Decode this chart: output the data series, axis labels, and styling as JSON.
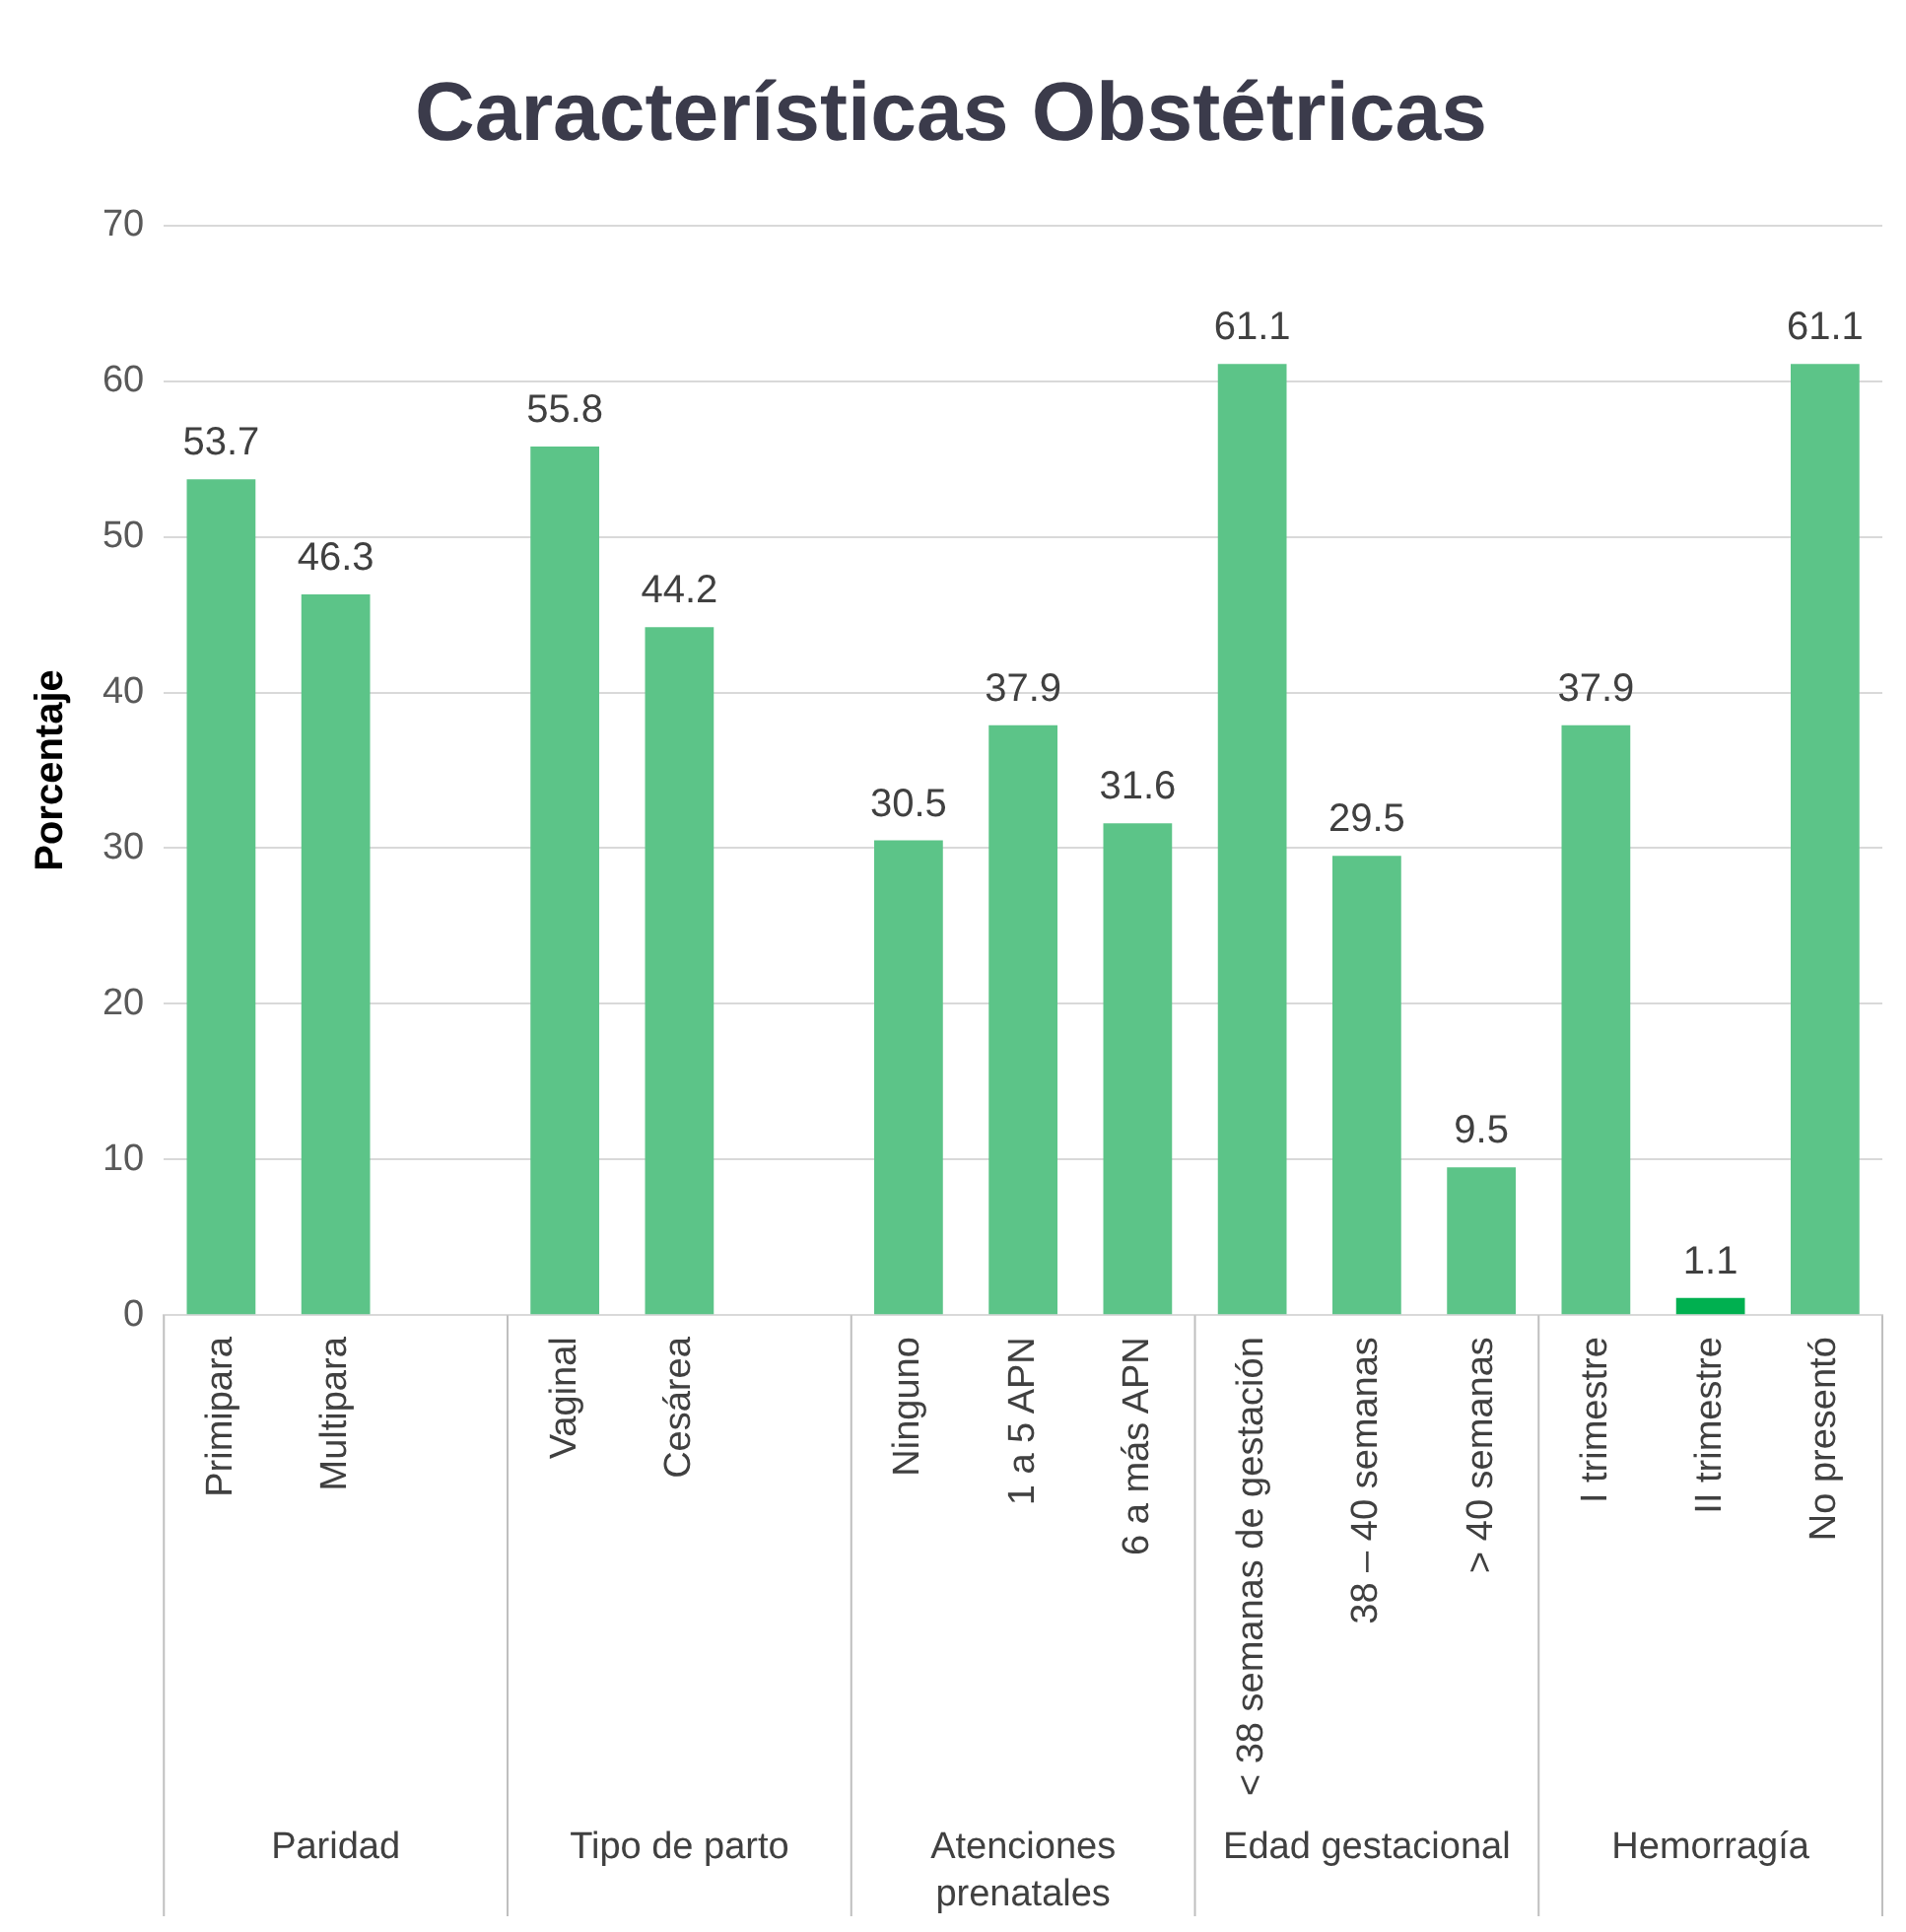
{
  "chart_data": {
    "type": "bar",
    "title": "Características Obstétricas",
    "ylabel": "Porcentaje",
    "categories": [
      "Primipara",
      "Multipara",
      null,
      "Vaginal",
      "Cesárea",
      null,
      "Ninguno",
      "1 a 5 APN",
      "6 a más APN",
      "< 38 semanas de gestación",
      "38 – 40 semanas",
      "> 40 semanas",
      "I trimestre",
      "II trimestre",
      "No presentó"
    ],
    "values": [
      53.7,
      46.3,
      null,
      55.8,
      44.2,
      null,
      30.5,
      37.9,
      31.6,
      61.1,
      29.5,
      9.5,
      37.9,
      1.1,
      61.1
    ],
    "colors": [
      "#5cc488",
      "#5cc488",
      "#5cc488",
      "#5cc488",
      "#5cc488",
      "#5cc488",
      "#5cc488",
      "#5cc488",
      "#5cc488",
      "#5cc488",
      "#5cc488",
      "#5cc488",
      "#5cc488",
      "#00b050",
      "#5cc488"
    ],
    "annotations": [
      "Paridad",
      "Tipo de parto",
      "Atenciones prenatales",
      "Edad gestacional",
      "Hemorragía"
    ],
    "ylim": [
      0,
      70
    ],
    "yticks": [
      0,
      10,
      20,
      30,
      40,
      50,
      60,
      70
    ],
    "grid": "y",
    "legend": false,
    "data_labels": true
  }
}
